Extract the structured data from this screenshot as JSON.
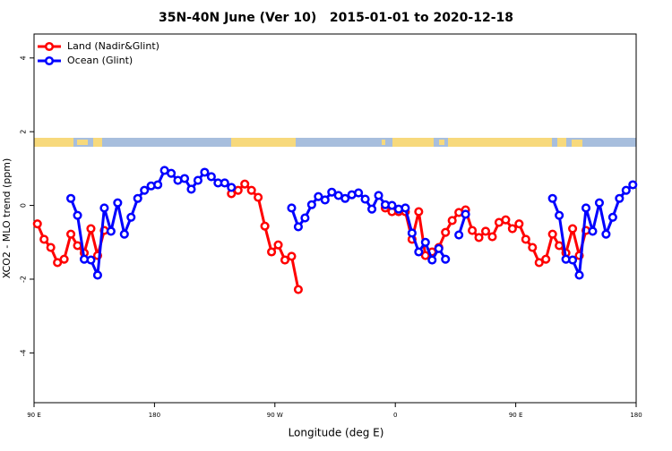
{
  "chart_data": {
    "type": "line",
    "title": "35N-40N June (Ver 10)   2015-01-01 to 2020-12-18",
    "x_label": "Longitude (deg E)",
    "y_label": "XCO2 - MLO trend (ppm)",
    "x": [
      92.5,
      97.5,
      102.5,
      107.5,
      112.5,
      117.5,
      122.5,
      127.5,
      132.5,
      137.5,
      142.5,
      147.5,
      152.5,
      157.5,
      162.5,
      167.5,
      172.5,
      177.5,
      182.5,
      187.5,
      192.5,
      197.5,
      202.5,
      207.5,
      212.5,
      217.5,
      222.5,
      227.5,
      232.5,
      237.5,
      242.5,
      247.5,
      252.5,
      257.5,
      262.5,
      267.5,
      272.5,
      277.5,
      282.5,
      287.5,
      292.5,
      297.5,
      302.5,
      307.5,
      312.5,
      317.5,
      322.5,
      327.5,
      332.5,
      337.5,
      342.5,
      347.5,
      352.5,
      357.5,
      362.5,
      367.5,
      372.5,
      377.5,
      382.5,
      387.5,
      392.5,
      397.5,
      402.5,
      407.5,
      412.5,
      417.5,
      422.5,
      427.5,
      432.5,
      437.5,
      442.5,
      447.5,
      452.5,
      457.5,
      462.5,
      467.5,
      472.5,
      477.5,
      482.5,
      487.5,
      492.5,
      497.5,
      502.5,
      507.5,
      512.5,
      517.5,
      522.5,
      527.5,
      532.5,
      537.5
    ],
    "series": [
      {
        "name": "Land (Nadir&Glint)",
        "color": "#ff0000",
        "values": [
          -0.5,
          -0.92,
          -1.14,
          -1.55,
          -1.46,
          -0.78,
          -1.09,
          -1.29,
          -0.63,
          -1.36,
          -0.68,
          null,
          null,
          null,
          null,
          null,
          null,
          null,
          null,
          null,
          null,
          null,
          null,
          null,
          null,
          null,
          null,
          null,
          null,
          0.32,
          0.41,
          0.58,
          0.41,
          0.22,
          -0.56,
          -1.26,
          -1.07,
          -1.48,
          -1.38,
          -2.28,
          null,
          null,
          null,
          null,
          null,
          null,
          null,
          null,
          null,
          null,
          null,
          null,
          -0.07,
          -0.17,
          -0.17,
          -0.17,
          -0.92,
          -0.17,
          -1.36,
          -1.26,
          -1.14,
          -0.73,
          -0.41,
          -0.19,
          -0.12,
          -0.68,
          -0.87,
          -0.7,
          -0.85,
          -0.46,
          -0.39,
          -0.63,
          -0.5,
          -0.92,
          -1.14,
          -1.55,
          -1.46,
          -0.78,
          -1.09,
          -1.29,
          -0.63,
          -1.36,
          -0.68,
          null,
          null,
          null,
          null,
          null,
          null,
          null
        ]
      },
      {
        "name": "Ocean (Glint)",
        "color": "#0000ff",
        "values": [
          null,
          null,
          null,
          null,
          null,
          0.19,
          -0.27,
          -1.46,
          -1.48,
          -1.89,
          -0.07,
          -0.7,
          0.07,
          -0.78,
          -0.32,
          0.19,
          0.41,
          0.53,
          0.56,
          0.95,
          0.87,
          0.68,
          0.73,
          0.44,
          0.68,
          0.9,
          0.78,
          0.61,
          0.61,
          0.49,
          null,
          null,
          null,
          null,
          null,
          null,
          null,
          null,
          -0.07,
          -0.58,
          -0.34,
          0.02,
          0.24,
          0.15,
          0.36,
          0.27,
          0.19,
          0.29,
          0.34,
          0.17,
          -0.1,
          0.27,
          0.02,
          0,
          -0.1,
          -0.07,
          -0.75,
          -1.26,
          -1.0,
          -1.48,
          -1.17,
          -1.46,
          null,
          -0.8,
          -0.24,
          null,
          null,
          null,
          null,
          null,
          null,
          null,
          null,
          null,
          null,
          null,
          null,
          0.19,
          -0.27,
          -1.46,
          -1.48,
          -1.89,
          -0.07,
          -0.7,
          0.07,
          -0.78,
          -0.32,
          0.19,
          0.41,
          0.56
        ]
      }
    ],
    "xlim": [
      90,
      540
    ],
    "xticks": [
      {
        "value": 90,
        "label": "90 E"
      },
      {
        "value": 180,
        "label": "180"
      },
      {
        "value": 270,
        "label": "90 W"
      },
      {
        "value": 360,
        "label": "0"
      },
      {
        "value": 450,
        "label": "90 E"
      },
      {
        "value": 540,
        "label": "180"
      }
    ],
    "ylim": [
      -5.35,
      4.65
    ],
    "yticks": [
      -4,
      -2,
      0,
      2,
      4
    ],
    "legend": "top-left"
  }
}
